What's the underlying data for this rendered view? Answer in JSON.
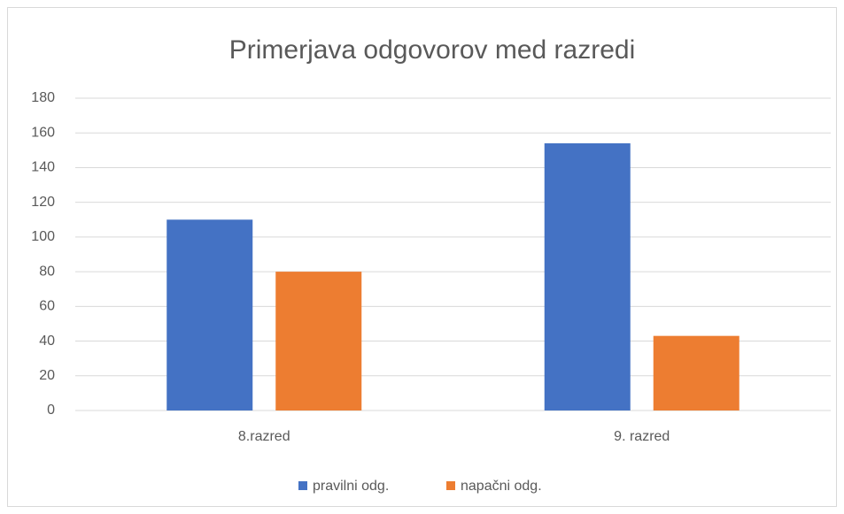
{
  "chart_data": {
    "type": "bar",
    "title": "Primerjava odgovorov med razredi",
    "categories": [
      "8.razred",
      "9. razred"
    ],
    "series": [
      {
        "name": "pravilni odg.",
        "color": "#4472c4",
        "values": [
          110,
          154
        ]
      },
      {
        "name": "napačni odg.",
        "color": "#ed7d31",
        "values": [
          80,
          43
        ]
      }
    ],
    "ylim": [
      0,
      180
    ],
    "yticks": [
      0,
      20,
      40,
      60,
      80,
      100,
      120,
      140,
      160,
      180
    ],
    "grid": true,
    "legend": "bottom"
  }
}
